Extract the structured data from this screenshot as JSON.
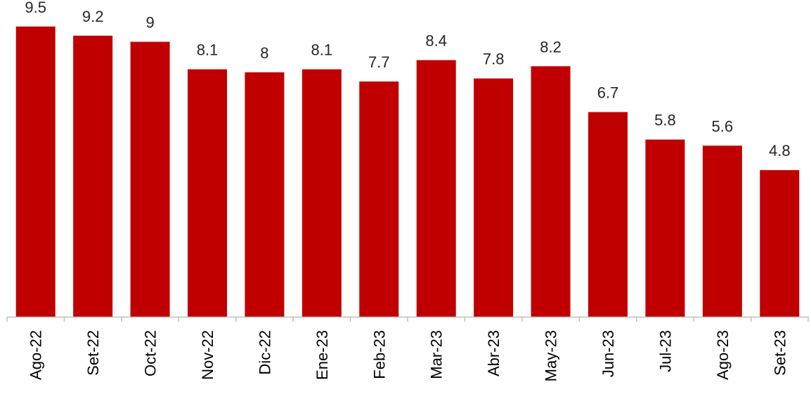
{
  "chart_data": {
    "type": "bar",
    "title": "",
    "xlabel": "",
    "ylabel": "",
    "categories": [
      "Ago-22",
      "Set-22",
      "Oct-22",
      "Nov-22",
      "Dic-22",
      "Ene-23",
      "Feb-23",
      "Mar-23",
      "Abr-23",
      "May-23",
      "Jun-23",
      "Jul-23",
      "Ago-23",
      "Set-23"
    ],
    "values": [
      9.5,
      9.2,
      9,
      8.1,
      8,
      8.1,
      7.7,
      8.4,
      7.8,
      8.2,
      6.7,
      5.8,
      5.6,
      4.8
    ],
    "value_labels": [
      "9.5",
      "9.2",
      "9",
      "8.1",
      "8",
      "8.1",
      "7.7",
      "8.4",
      "7.8",
      "8.2",
      "6.7",
      "5.8",
      "5.6",
      "4.8"
    ],
    "ylim": [
      0,
      10
    ],
    "grid": false,
    "legend": "none",
    "colors": {
      "bar": "#C00000",
      "axis": "#BFBFBF",
      "label_text": "#262626",
      "tick_text": "#000000"
    }
  }
}
